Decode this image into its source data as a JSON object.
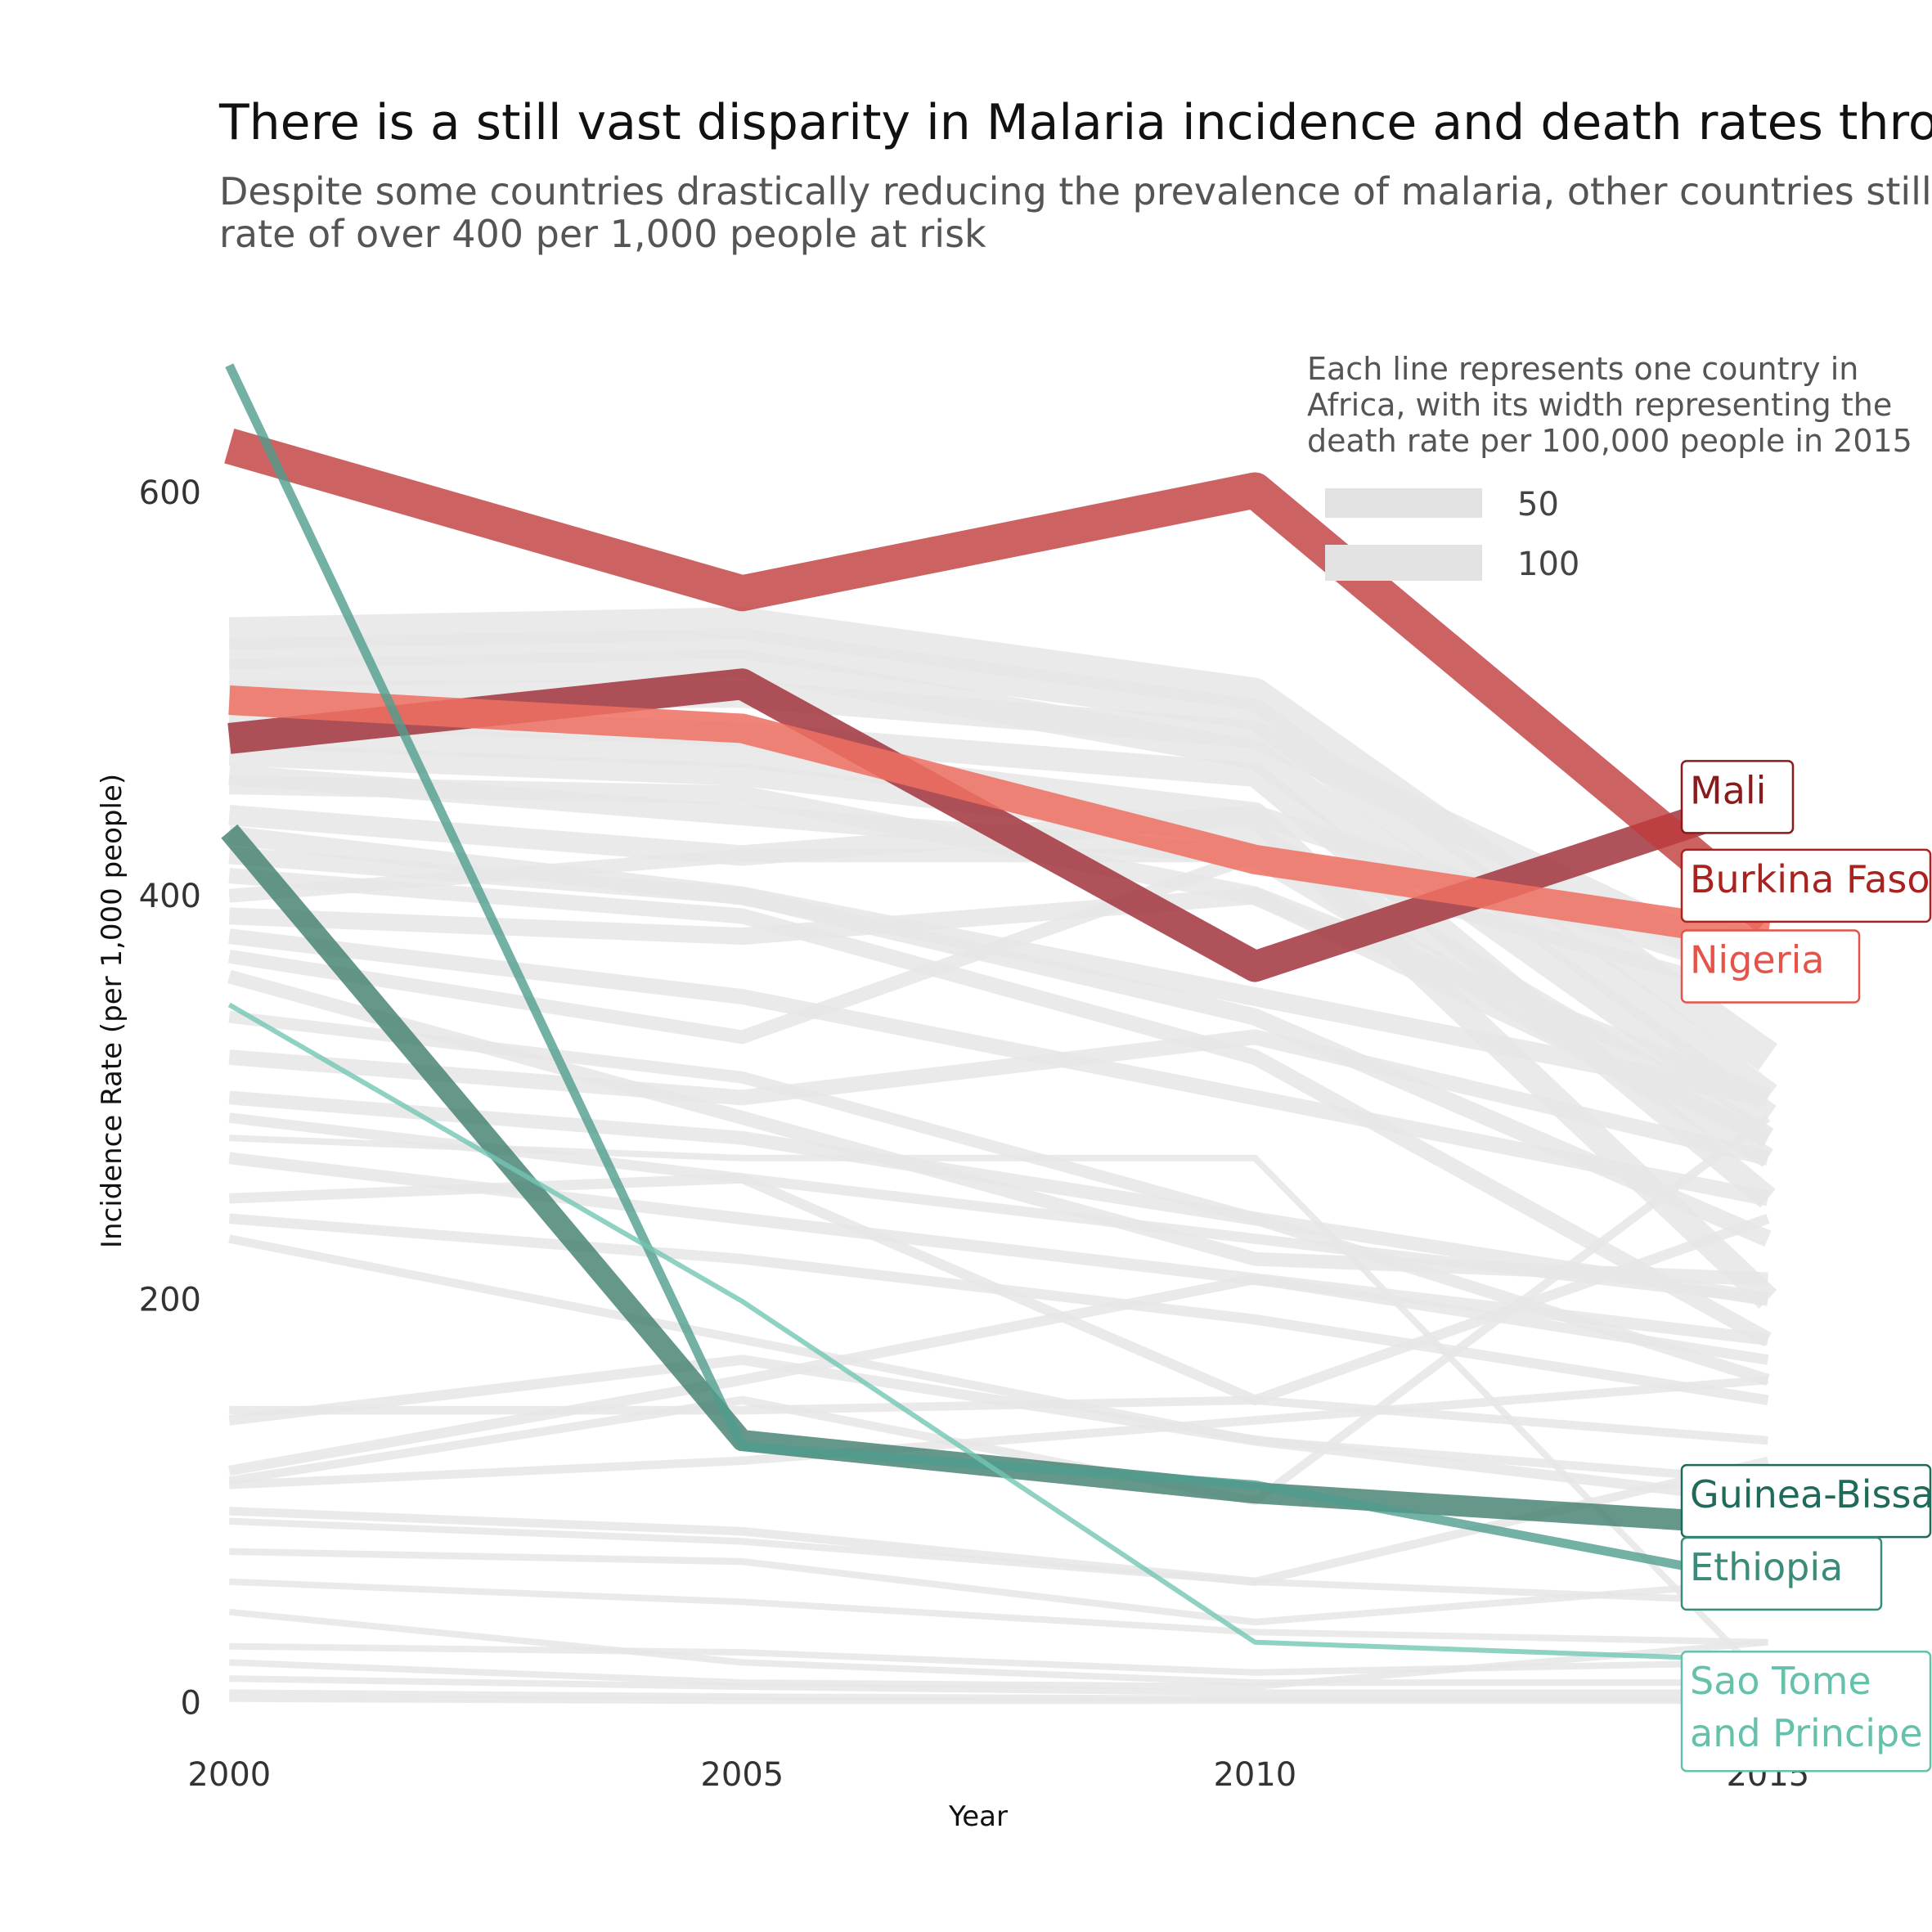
{
  "chart_data": {
    "type": "line",
    "title": "There is a still vast disparity in Malaria incidence and death rates thro",
    "subtitle_lines": [
      "Despite some countries drastically reducing the prevalence of malaria, other countries still ha",
      "rate of over 400 per 1,000 people at risk"
    ],
    "xlabel": "Year",
    "ylabel": "Incidence Rate (per 1,000 people)",
    "x": [
      2000,
      2005,
      2010,
      2015
    ],
    "xlim": [
      1999.2,
      2016.6
    ],
    "ylim": [
      -22,
      690
    ],
    "y_ticks": [
      0,
      200,
      400,
      600
    ],
    "grid": false,
    "legend": {
      "position": "top-right",
      "title_lines": [
        "Each line represents one country in",
        "Africa, with its width representing the",
        "death rate per 100,000 people in 2015"
      ],
      "entries": [
        {
          "label": "50",
          "value": 50
        },
        {
          "label": "100",
          "value": 100
        }
      ],
      "color": "#e3e3e3"
    },
    "background_color": "#e6e6e6",
    "background_series": [
      {
        "values": [
          530,
          535,
          500,
          320
        ],
        "width": 95
      },
      {
        "values": [
          520,
          525,
          490,
          300
        ],
        "width": 90
      },
      {
        "values": [
          510,
          515,
          470,
          290
        ],
        "width": 85
      },
      {
        "values": [
          500,
          500,
          480,
          360
        ],
        "width": 80
      },
      {
        "values": [
          490,
          480,
          460,
          250
        ],
        "width": 70
      },
      {
        "values": [
          480,
          470,
          440,
          200
        ],
        "width": 75
      },
      {
        "values": [
          470,
          460,
          430,
          280
        ],
        "width": 65
      },
      {
        "values": [
          460,
          440,
          420,
          270
        ],
        "width": 60
      },
      {
        "values": [
          455,
          450,
          400,
          300
        ],
        "width": 55
      },
      {
        "values": [
          440,
          420,
          440,
          360
        ],
        "width": 60
      },
      {
        "values": [
          430,
          400,
          350,
          300
        ],
        "width": 55
      },
      {
        "values": [
          420,
          400,
          340,
          230
        ],
        "width": 50
      },
      {
        "values": [
          410,
          390,
          320,
          180
        ],
        "width": 45
      },
      {
        "values": [
          400,
          420,
          420,
          350
        ],
        "width": 40
      },
      {
        "values": [
          390,
          380,
          400,
          280
        ],
        "width": 50
      },
      {
        "values": [
          380,
          350,
          300,
          250
        ],
        "width": 45
      },
      {
        "values": [
          370,
          330,
          420,
          380
        ],
        "width": 40
      },
      {
        "values": [
          360,
          290,
          220,
          210
        ],
        "width": 40
      },
      {
        "values": [
          340,
          310,
          240,
          160
        ],
        "width": 35
      },
      {
        "values": [
          320,
          300,
          330,
          270
        ],
        "width": 45
      },
      {
        "values": [
          300,
          280,
          240,
          200
        ],
        "width": 40
      },
      {
        "values": [
          290,
          260,
          150,
          240
        ],
        "width": 30
      },
      {
        "values": [
          280,
          270,
          270,
          10
        ],
        "width": 12
      },
      {
        "values": [
          270,
          240,
          210,
          180
        ],
        "width": 35
      },
      {
        "values": [
          250,
          260,
          230,
          200
        ],
        "width": 30
      },
      {
        "values": [
          240,
          220,
          190,
          150
        ],
        "width": 30
      },
      {
        "values": [
          230,
          180,
          130,
          110
        ],
        "width": 25
      },
      {
        "values": [
          145,
          145,
          150,
          130
        ],
        "width": 25
      },
      {
        "values": [
          140,
          170,
          130,
          100
        ],
        "width": 30
      },
      {
        "values": [
          115,
          160,
          210,
          170
        ],
        "width": 30
      },
      {
        "values": [
          110,
          150,
          100,
          290
        ],
        "width": 25
      },
      {
        "values": [
          108,
          120,
          140,
          160
        ],
        "width": 25
      },
      {
        "values": [
          95,
          85,
          60,
          120
        ],
        "width": 25
      },
      {
        "values": [
          90,
          80,
          60,
          50
        ],
        "width": 20
      },
      {
        "values": [
          75,
          70,
          40,
          60
        ],
        "width": 20
      },
      {
        "values": [
          60,
          50,
          35,
          30
        ],
        "width": 15
      },
      {
        "values": [
          45,
          20,
          10,
          10
        ],
        "width": 12
      },
      {
        "values": [
          28,
          25,
          15,
          20
        ],
        "width": 12
      },
      {
        "values": [
          20,
          10,
          8,
          30
        ],
        "width": 12
      },
      {
        "values": [
          12,
          8,
          5,
          5
        ],
        "width": 10
      },
      {
        "values": [
          5,
          3,
          2,
          2
        ],
        "width": 10
      },
      {
        "values": [
          2,
          1,
          1,
          1
        ],
        "width": 10
      }
    ],
    "series": [
      {
        "name": "Mali",
        "values": [
          478,
          505,
          365,
          449
        ],
        "color": "#a1343c",
        "width": 38,
        "opacity": 0.85
      },
      {
        "name": "Burkina Faso",
        "values": [
          623,
          550,
          601,
          389
        ],
        "color": "#bf3b3b",
        "width": 44,
        "opacity": 0.8
      },
      {
        "name": "Nigeria",
        "values": [
          497,
          483,
          418,
          380
        ],
        "color": "#ef6f60",
        "width": 36,
        "opacity": 0.85
      },
      {
        "name": "Guinea-Bissau",
        "values": [
          432,
          130,
          104,
          88
        ],
        "color": "#3f7d6d",
        "width": 26,
        "opacity": 0.8
      },
      {
        "name": "Ethiopia",
        "values": [
          663,
          127,
          108,
          60
        ],
        "color": "#4f9e8d",
        "width": 11,
        "opacity": 0.8
      },
      {
        "name": "Sao Tome and Principe",
        "values": [
          346,
          199,
          30,
          21
        ],
        "color": "#73c6b4",
        "width": 6,
        "opacity": 0.8
      }
    ],
    "labels": [
      {
        "name": "mali",
        "lines": [
          "Mali"
        ],
        "color": "#8b1a1a",
        "y": 449
      },
      {
        "name": "burkina-faso",
        "lines": [
          "Burkina Faso"
        ],
        "color": "#a8231f",
        "y": 405
      },
      {
        "name": "nigeria",
        "lines": [
          "Nigeria"
        ],
        "color": "#e4544a",
        "y": 365
      },
      {
        "name": "guinea-bissau",
        "lines": [
          "Guinea-Bissau"
        ],
        "color": "#1f6a5a",
        "y": 100
      },
      {
        "name": "ethiopia",
        "lines": [
          "Ethiopia"
        ],
        "color": "#3b8b7a",
        "y": 64
      },
      {
        "name": "sao-tome-and-principe",
        "lines": [
          "Sao Tome",
          "and Principe"
        ],
        "color": "#66c1ac",
        "y": 14
      }
    ]
  }
}
